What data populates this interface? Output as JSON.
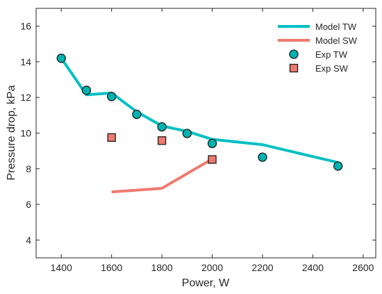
{
  "chart_data": {
    "type": "line",
    "xlabel": "Power, W",
    "ylabel": "Pressure drop, kPa",
    "xlim": [
      1300,
      2650
    ],
    "ylim": [
      3,
      17
    ],
    "xticks": [
      1400,
      1600,
      1800,
      2000,
      2200,
      2400,
      2600
    ],
    "yticks": [
      4,
      6,
      8,
      10,
      12,
      14,
      16
    ],
    "grid": false,
    "box": true,
    "legend_position": "top-right",
    "series": [
      {
        "name": "Model TW",
        "kind": "line",
        "color": "#00BFC4",
        "x": [
          1400,
          1500,
          1600,
          1700,
          1800,
          1900,
          2000,
          2200,
          2500
        ],
        "y": [
          14.2,
          12.15,
          12.25,
          11.2,
          10.4,
          10.1,
          9.65,
          9.35,
          8.35
        ]
      },
      {
        "name": "Model SW",
        "kind": "line",
        "color": "#F07A6F",
        "x": [
          1600,
          1800,
          2000
        ],
        "y": [
          6.7,
          6.9,
          8.55
        ]
      },
      {
        "name": "Exp TW",
        "kind": "scatter",
        "marker": "circle",
        "color": "#00B3B3",
        "x": [
          1400,
          1500,
          1600,
          1700,
          1800,
          1900,
          2000,
          2200,
          2500
        ],
        "y": [
          14.2,
          12.4,
          12.05,
          11.05,
          10.35,
          9.98,
          9.42,
          8.65,
          8.15
        ]
      },
      {
        "name": "Exp SW",
        "kind": "scatter",
        "marker": "square",
        "color": "#F07A6F",
        "x": [
          1600,
          1800,
          2000
        ],
        "y": [
          9.75,
          9.58,
          8.52
        ]
      }
    ]
  }
}
